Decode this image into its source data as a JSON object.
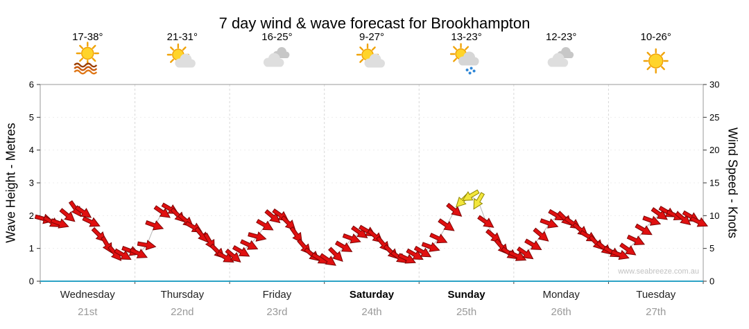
{
  "title": "7 day wind & wave forecast for Brookhampton",
  "watermark": "www.seabreeze.com.au",
  "axes": {
    "left_label": "Wave Height - Metres",
    "right_label": "Wind Speed - Knots"
  },
  "days": [
    {
      "name": "Wednesday",
      "date": "21st",
      "temp": "17-38°",
      "icon": "sun-over-water",
      "bold": false
    },
    {
      "name": "Thursday",
      "date": "22nd",
      "temp": "21-31°",
      "icon": "sun-behind-cloud",
      "bold": false
    },
    {
      "name": "Friday",
      "date": "23rd",
      "temp": "16-25°",
      "icon": "clouds",
      "bold": false
    },
    {
      "name": "Saturday",
      "date": "24th",
      "temp": "9-27°",
      "icon": "sun-behind-cloud",
      "bold": true
    },
    {
      "name": "Sunday",
      "date": "25th",
      "temp": "13-23°",
      "icon": "sun-cloud-rain",
      "bold": true
    },
    {
      "name": "Monday",
      "date": "26th",
      "temp": "12-23°",
      "icon": "clouds",
      "bold": false
    },
    {
      "name": "Tuesday",
      "date": "27th",
      "temp": "10-26°",
      "icon": "sun",
      "bold": false
    }
  ],
  "chart_data": {
    "type": "scatter",
    "subtype": "wind-direction-arrows",
    "title": "7 day wind & wave forecast for Brookhampton",
    "x_axis": {
      "unit": "hours",
      "range": [
        0,
        168
      ],
      "day_labels": [
        "Wednesday",
        "Thursday",
        "Friday",
        "Saturday",
        "Sunday",
        "Monday",
        "Tuesday"
      ],
      "day_dates": [
        "21st",
        "22nd",
        "23rd",
        "24th",
        "25th",
        "26th",
        "27th"
      ]
    },
    "left_axis": {
      "label": "Wave Height - Metres",
      "range": [
        0,
        6
      ],
      "ticks": [
        0,
        1,
        2,
        3,
        4,
        5,
        6
      ]
    },
    "right_axis": {
      "label": "Wind Speed - Knots",
      "range": [
        0,
        30
      ],
      "ticks": [
        0,
        5,
        10,
        15,
        20,
        25,
        30
      ]
    },
    "temperatures": [
      "17-38°",
      "21-31°",
      "16-25°",
      "9-27°",
      "13-23°",
      "12-23°",
      "10-26°"
    ],
    "weather_icons": [
      "sun-over-water",
      "sun-behind-cloud",
      "clouds",
      "sun-behind-cloud",
      "sun-cloud-rain",
      "clouds",
      "sun"
    ],
    "grid": true,
    "legend": "none",
    "colors": {
      "arrow_red": "#e01010",
      "arrow_red_outline": "#7c0404",
      "arrow_yellow": "#f2e63c",
      "arrow_yellow_outline": "#8f8500",
      "baseline": "#2ba3c6",
      "connector": "#b5b5b5"
    },
    "color_codes": {
      "0": "red",
      "1": "yellow"
    },
    "point_format": [
      "hour",
      "wind_knots",
      "direction_deg_cw_from_east",
      "color"
    ],
    "series": [
      {
        "name": "Wind speed & direction",
        "points": [
          [
            1,
            9.5,
            15,
            0
          ],
          [
            3,
            9.0,
            30,
            0
          ],
          [
            5,
            8.8,
            20,
            0
          ],
          [
            7,
            10.0,
            40,
            0
          ],
          [
            9,
            11.0,
            55,
            0
          ],
          [
            11,
            10.5,
            35,
            0
          ],
          [
            13,
            9.0,
            25,
            0
          ],
          [
            15,
            7.0,
            45,
            0
          ],
          [
            17,
            5.5,
            60,
            0
          ],
          [
            19,
            4.2,
            50,
            0
          ],
          [
            21,
            4.0,
            30,
            0
          ],
          [
            23,
            4.6,
            20,
            0
          ],
          [
            25,
            4.2,
            25,
            0
          ],
          [
            27,
            5.5,
            10,
            0
          ],
          [
            29,
            8.5,
            20,
            0
          ],
          [
            31,
            10.5,
            35,
            0
          ],
          [
            33,
            11.0,
            30,
            0
          ],
          [
            35,
            10.0,
            45,
            0
          ],
          [
            37,
            9.2,
            40,
            0
          ],
          [
            39,
            8.2,
            30,
            0
          ],
          [
            41,
            7.0,
            50,
            0
          ],
          [
            43,
            6.0,
            60,
            0
          ],
          [
            45,
            4.5,
            45,
            0
          ],
          [
            47,
            3.6,
            30,
            0
          ],
          [
            49,
            3.8,
            40,
            0
          ],
          [
            51,
            4.5,
            30,
            0
          ],
          [
            53,
            5.5,
            25,
            0
          ],
          [
            55,
            6.8,
            15,
            0
          ],
          [
            57,
            8.5,
            30,
            0
          ],
          [
            59,
            9.8,
            40,
            0
          ],
          [
            61,
            10.0,
            35,
            0
          ],
          [
            63,
            8.8,
            45,
            0
          ],
          [
            65,
            7.0,
            55,
            0
          ],
          [
            67,
            5.2,
            50,
            0
          ],
          [
            69,
            4.0,
            40,
            0
          ],
          [
            71,
            3.4,
            30,
            0
          ],
          [
            73,
            3.2,
            35,
            0
          ],
          [
            75,
            4.0,
            45,
            0
          ],
          [
            77,
            5.2,
            30,
            0
          ],
          [
            79,
            6.5,
            20,
            0
          ],
          [
            81,
            7.4,
            35,
            0
          ],
          [
            83,
            7.6,
            30,
            0
          ],
          [
            85,
            6.8,
            40,
            0
          ],
          [
            87,
            5.6,
            50,
            0
          ],
          [
            89,
            4.4,
            45,
            0
          ],
          [
            91,
            3.6,
            35,
            0
          ],
          [
            93,
            3.4,
            25,
            0
          ],
          [
            95,
            4.0,
            30,
            0
          ],
          [
            97,
            4.4,
            30,
            0
          ],
          [
            99,
            5.2,
            20,
            0
          ],
          [
            101,
            6.5,
            25,
            0
          ],
          [
            103,
            8.5,
            35,
            0
          ],
          [
            105,
            10.8,
            40,
            0
          ],
          [
            107,
            12.3,
            135,
            1
          ],
          [
            109,
            13.0,
            150,
            1
          ],
          [
            111,
            12.2,
            120,
            1
          ],
          [
            113,
            9.0,
            35,
            0
          ],
          [
            115,
            6.8,
            40,
            0
          ],
          [
            117,
            5.2,
            50,
            0
          ],
          [
            119,
            4.2,
            35,
            0
          ],
          [
            121,
            3.8,
            25,
            0
          ],
          [
            123,
            4.2,
            35,
            0
          ],
          [
            125,
            5.5,
            30,
            0
          ],
          [
            127,
            7.0,
            40,
            0
          ],
          [
            129,
            8.8,
            20,
            0
          ],
          [
            131,
            10.0,
            30,
            0
          ],
          [
            133,
            9.5,
            45,
            0
          ],
          [
            135,
            8.8,
            35,
            0
          ],
          [
            137,
            7.8,
            40,
            0
          ],
          [
            139,
            6.8,
            30,
            0
          ],
          [
            141,
            5.8,
            45,
            0
          ],
          [
            143,
            5.0,
            40,
            0
          ],
          [
            145,
            4.4,
            30,
            0
          ],
          [
            147,
            4.0,
            20,
            0
          ],
          [
            149,
            4.8,
            35,
            0
          ],
          [
            151,
            6.2,
            25,
            0
          ],
          [
            153,
            7.8,
            30,
            0
          ],
          [
            155,
            9.2,
            20,
            0
          ],
          [
            157,
            10.2,
            35,
            0
          ],
          [
            159,
            10.5,
            30,
            0
          ],
          [
            161,
            10.0,
            25,
            0
          ],
          [
            163,
            9.5,
            40,
            0
          ],
          [
            165,
            9.8,
            30,
            0
          ],
          [
            167,
            9.0,
            25,
            0
          ]
        ]
      }
    ]
  }
}
